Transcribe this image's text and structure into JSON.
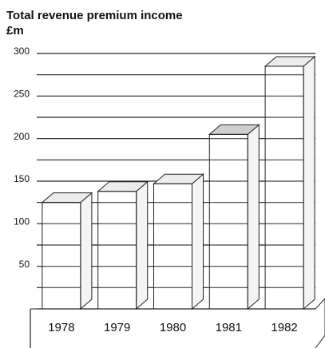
{
  "chart_data": {
    "type": "bar3d",
    "title": "Total revenue premium income",
    "subtitle": "£m",
    "categories": [
      "1978",
      "1979",
      "1980",
      "1981",
      "1982"
    ],
    "values": [
      125,
      138,
      147,
      205,
      285
    ],
    "color": "#ffffff",
    "ylim": [
      0,
      300
    ],
    "yticks": [
      50,
      100,
      150,
      200,
      250,
      300
    ],
    "minor_yticks": [
      0,
      25,
      75,
      125,
      175,
      225,
      275
    ],
    "grid": true
  }
}
